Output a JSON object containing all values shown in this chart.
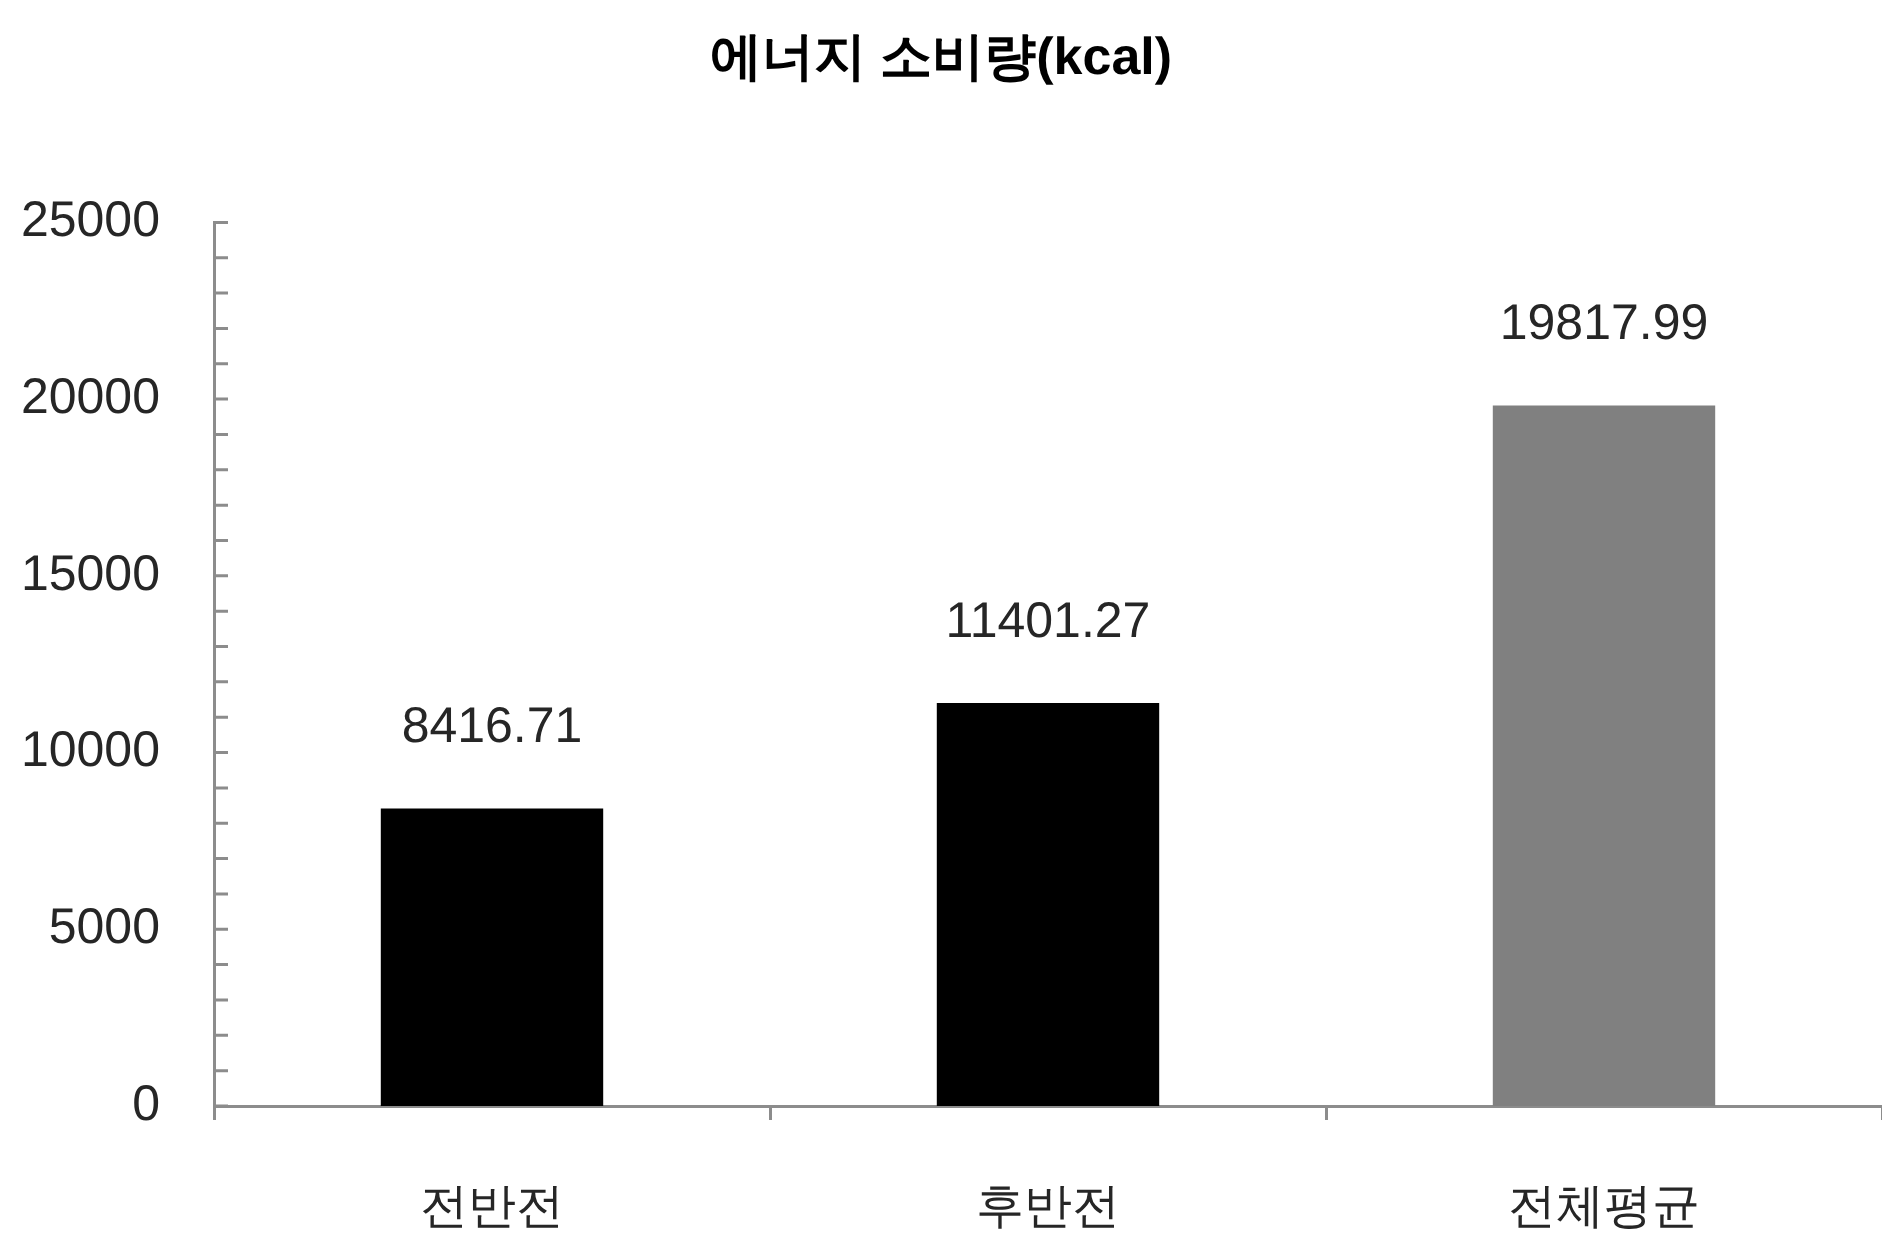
{
  "chart_data": {
    "type": "bar",
    "title": "에너지 소비량(kcal)",
    "categories": [
      "전반전",
      "후반전",
      "전체평균"
    ],
    "values": [
      8416.71,
      11401.27,
      19817.99
    ],
    "colors": [
      "#000000",
      "#000000",
      "#808080"
    ],
    "ylim": [
      0,
      25000
    ],
    "yticks": [
      0,
      {
        "value": 1000,
        "label": null
      },
      {
        "value": 2000,
        "label": null
      },
      {
        "value": 3000,
        "label": null
      },
      {
        "value": 4000,
        "label": null
      },
      5000,
      {
        "value": 6000,
        "label": null
      },
      {
        "value": 7000,
        "label": null
      },
      {
        "value": 8000,
        "label": null
      },
      {
        "value": 9000,
        "label": null
      },
      10000,
      {
        "value": 11000,
        "label": null
      },
      {
        "value": 12000,
        "label": null
      },
      {
        "value": 13000,
        "label": null
      },
      {
        "value": 14000,
        "label": null
      },
      15000,
      {
        "value": 16000,
        "label": null
      },
      {
        "value": 17000,
        "label": null
      },
      {
        "value": 18000,
        "label": null
      },
      {
        "value": 19000,
        "label": null
      },
      20000,
      {
        "value": 21000,
        "label": null
      },
      {
        "value": 22000,
        "label": null
      },
      {
        "value": 23000,
        "label": null
      },
      {
        "value": 24000,
        "label": null
      },
      25000
    ],
    "data_labels": true
  }
}
